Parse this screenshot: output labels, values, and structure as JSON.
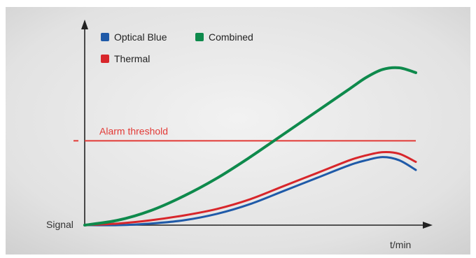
{
  "chart_data": {
    "type": "line",
    "title": "",
    "xlabel": "t/min",
    "ylabel": "Signal",
    "grid": false,
    "xlim": [
      0,
      100
    ],
    "ylim": [
      0,
      100
    ],
    "legend": {
      "placement": "top-left",
      "entries": [
        {
          "label": "Optical Blue",
          "color": "#1f5aa8"
        },
        {
          "label": "Combined",
          "color": "#0e8a4c"
        },
        {
          "label": "Thermal",
          "color": "#d8262b"
        }
      ]
    },
    "threshold": {
      "label": "Alarm threshold",
      "value": 52,
      "color": "#e23a36"
    },
    "series": [
      {
        "name": "Optical Blue",
        "color": "#1f5aa8",
        "x": [
          0,
          10,
          20,
          30,
          40,
          50,
          60,
          70,
          80,
          85,
          90,
          95,
          100
        ],
        "y": [
          0,
          0,
          1,
          3,
          7,
          13,
          21,
          29,
          37,
          40,
          42,
          40,
          34
        ]
      },
      {
        "name": "Thermal",
        "color": "#d8262b",
        "x": [
          0,
          10,
          20,
          30,
          40,
          50,
          60,
          70,
          80,
          85,
          90,
          95,
          100
        ],
        "y": [
          0,
          1,
          3,
          6,
          10,
          16,
          24,
          32,
          40,
          43,
          45,
          44,
          39
        ]
      },
      {
        "name": "Combined",
        "color": "#0e8a4c",
        "x": [
          0,
          10,
          20,
          30,
          40,
          50,
          60,
          70,
          80,
          85,
          90,
          95,
          100
        ],
        "y": [
          0,
          3,
          9,
          18,
          29,
          42,
          56,
          70,
          84,
          91,
          96,
          97,
          94
        ]
      }
    ]
  }
}
